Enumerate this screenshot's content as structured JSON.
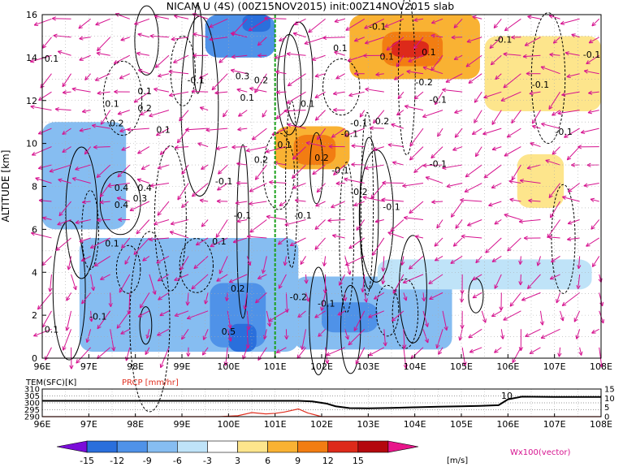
{
  "chart_data": [
    {
      "type": "heatmap",
      "title": "NICAM U (4S) (00Z15NOV2015) init:00Z14NOV2015 slab",
      "ylabel": "ALTITUDE [km]",
      "xlabel": "",
      "x_tick_labels": [
        "96E",
        "97E",
        "98E",
        "99E",
        "100E",
        "101E",
        "102E",
        "103E",
        "104E",
        "105E",
        "106E",
        "107E",
        "108E"
      ],
      "x_ticks": [
        96,
        97,
        98,
        99,
        100,
        101,
        102,
        103,
        104,
        105,
        106,
        107,
        108
      ],
      "y_tick_labels": [
        "0",
        "2",
        "4",
        "6",
        "8",
        "10",
        "12",
        "14",
        "16"
      ],
      "y_ticks": [
        0,
        2,
        4,
        6,
        8,
        10,
        12,
        14,
        16
      ],
      "xlim": [
        96,
        108
      ],
      "ylim": [
        0,
        16
      ],
      "grid": true,
      "marker_line_x": 101,
      "colors": {
        "v_-15": "#7b0dd9",
        "v_-12": "#2a6fdc",
        "v_-9": "#4f92e8",
        "v_-6": "#86bdf1",
        "v_-3": "#bfe3f8",
        "v_0": "#ffffff",
        "v_3": "#fde58c",
        "v_6": "#f9b233",
        "v_9": "#f27d12",
        "v_12": "#dd2a1a",
        "v_15": "#b4080e",
        "vector": "#d6128f",
        "contour": "#000000",
        "marker": "#1aa11a"
      },
      "regions": [
        {
          "x": [
            96.8,
            101.5
          ],
          "y": [
            0.3,
            5.6
          ],
          "value": -6
        },
        {
          "x": [
            99.6,
            100.8
          ],
          "y": [
            0.5,
            3.5
          ],
          "value": -9
        },
        {
          "x": [
            100.0,
            100.6
          ],
          "y": [
            0.3,
            1.6
          ],
          "value": -12
        },
        {
          "x": [
            101.4,
            104.8
          ],
          "y": [
            0.4,
            3.8
          ],
          "value": -6
        },
        {
          "x": [
            102.0,
            103.2
          ],
          "y": [
            1.2,
            2.6
          ],
          "value": -9
        },
        {
          "x": [
            96.0,
            97.8
          ],
          "y": [
            6.0,
            11.0
          ],
          "value": -6
        },
        {
          "x": [
            99.5,
            101.0
          ],
          "y": [
            14.0,
            16.0
          ],
          "value": -9
        },
        {
          "x": [
            100.3,
            100.9
          ],
          "y": [
            15.2,
            16.0
          ],
          "value": -12
        },
        {
          "x": [
            103.2,
            107.8
          ],
          "y": [
            3.2,
            4.6
          ],
          "value": -3
        },
        {
          "x": [
            101.0,
            102.6
          ],
          "y": [
            8.8,
            10.8
          ],
          "value": 6
        },
        {
          "x": [
            101.4,
            102.3
          ],
          "y": [
            9.0,
            10.4
          ],
          "value": 9
        },
        {
          "x": [
            102.6,
            105.4
          ],
          "y": [
            13.0,
            16.0
          ],
          "value": 6
        },
        {
          "x": [
            103.3,
            104.6
          ],
          "y": [
            13.6,
            15.2
          ],
          "value": 9
        },
        {
          "x": [
            103.5,
            104.3
          ],
          "y": [
            14.0,
            14.8
          ],
          "value": 12
        },
        {
          "x": [
            105.5,
            108.0
          ],
          "y": [
            11.5,
            15.0
          ],
          "value": 3
        },
        {
          "x": [
            106.2,
            107.2
          ],
          "y": [
            7.0,
            9.5
          ],
          "value": 3
        }
      ],
      "contour_labels": [
        {
          "x": 96.2,
          "y": 13.8,
          "text": "0.1"
        },
        {
          "x": 97.5,
          "y": 11.7,
          "text": "0.1"
        },
        {
          "x": 97.6,
          "y": 10.8,
          "text": "0.2"
        },
        {
          "x": 98.2,
          "y": 12.3,
          "text": "0.1"
        },
        {
          "x": 98.2,
          "y": 11.5,
          "text": "0.2"
        },
        {
          "x": 98.6,
          "y": 10.5,
          "text": "0.1"
        },
        {
          "x": 99.3,
          "y": 12.8,
          "text": "-0.1"
        },
        {
          "x": 100.3,
          "y": 13.0,
          "text": "0.3"
        },
        {
          "x": 100.7,
          "y": 12.8,
          "text": "0.2"
        },
        {
          "x": 100.4,
          "y": 12.0,
          "text": "0.1"
        },
        {
          "x": 101.7,
          "y": 11.7,
          "text": "0.1"
        },
        {
          "x": 101.2,
          "y": 9.8,
          "text": "0.1"
        },
        {
          "x": 100.7,
          "y": 9.1,
          "text": "0.2"
        },
        {
          "x": 99.9,
          "y": 8.1,
          "text": "-0.1"
        },
        {
          "x": 97.7,
          "y": 7.8,
          "text": "0.4"
        },
        {
          "x": 97.7,
          "y": 7.0,
          "text": "0.4"
        },
        {
          "x": 98.2,
          "y": 7.8,
          "text": "0.4"
        },
        {
          "x": 98.1,
          "y": 7.3,
          "text": "0.3"
        },
        {
          "x": 97.5,
          "y": 5.2,
          "text": "0.1"
        },
        {
          "x": 100.3,
          "y": 6.5,
          "text": "-0.1"
        },
        {
          "x": 99.8,
          "y": 5.3,
          "text": "0.1"
        },
        {
          "x": 101.6,
          "y": 6.5,
          "text": "-0.1"
        },
        {
          "x": 100.2,
          "y": 3.1,
          "text": "0.2"
        },
        {
          "x": 101.5,
          "y": 2.7,
          "text": "-0.2"
        },
        {
          "x": 102.1,
          "y": 2.4,
          "text": "-0.1"
        },
        {
          "x": 96.2,
          "y": 1.2,
          "text": "0.1"
        },
        {
          "x": 97.2,
          "y": 1.8,
          "text": "-0.1"
        },
        {
          "x": 100.0,
          "y": 1.1,
          "text": "0.5"
        },
        {
          "x": 102.8,
          "y": 10.8,
          "text": "-0.1"
        },
        {
          "x": 102.6,
          "y": 10.3,
          "text": "-0.1"
        },
        {
          "x": 103.3,
          "y": 10.9,
          "text": "0.2"
        },
        {
          "x": 102.0,
          "y": 9.2,
          "text": "0.2"
        },
        {
          "x": 102.4,
          "y": 8.6,
          "text": "-0.1"
        },
        {
          "x": 102.8,
          "y": 7.6,
          "text": "-0.2"
        },
        {
          "x": 103.5,
          "y": 6.9,
          "text": "-0.1"
        },
        {
          "x": 104.5,
          "y": 8.9,
          "text": "-0.1"
        },
        {
          "x": 102.4,
          "y": 14.3,
          "text": "0.1"
        },
        {
          "x": 103.2,
          "y": 15.3,
          "text": "-0.1"
        },
        {
          "x": 103.4,
          "y": 13.9,
          "text": "0.1"
        },
        {
          "x": 104.3,
          "y": 14.1,
          "text": "0.1"
        },
        {
          "x": 104.2,
          "y": 12.7,
          "text": "-0.2"
        },
        {
          "x": 104.5,
          "y": 11.9,
          "text": "-0.1"
        },
        {
          "x": 105.9,
          "y": 14.7,
          "text": "-0.1"
        },
        {
          "x": 106.7,
          "y": 12.6,
          "text": "-0.1"
        },
        {
          "x": 107.2,
          "y": 10.4,
          "text": "-0.1"
        },
        {
          "x": 107.8,
          "y": 14.0,
          "text": "-0.1"
        }
      ]
    },
    {
      "type": "line",
      "labels": [
        "TEM(SFC)[K]",
        "PRCP [mm/hr]"
      ],
      "left_ticks": [
        "310",
        "305",
        "300",
        "295",
        "290"
      ],
      "right_ticks": [
        "15",
        "10",
        "5",
        "0"
      ],
      "x_tick_labels": [
        "96E",
        "97E",
        "98E",
        "99E",
        "100E",
        "101E",
        "102E",
        "103E",
        "104E",
        "105E",
        "106E",
        "107E",
        "108E"
      ],
      "xlim": [
        96,
        108
      ],
      "annotation": "10",
      "series": [
        {
          "name": "TEM(SFC)[K]",
          "x": [
            96,
            96.5,
            97,
            97.5,
            98,
            98.5,
            99,
            99.5,
            100,
            100.5,
            101,
            101.5,
            101.8,
            102.1,
            102.3,
            102.6,
            103,
            103.5,
            104,
            104.5,
            105,
            105.4,
            105.8,
            106,
            106.3,
            107,
            107.5,
            108
          ],
          "y": [
            301.5,
            301.5,
            301.5,
            301.5,
            301.5,
            301.5,
            301.5,
            301.5,
            301.5,
            301.5,
            301.5,
            301.5,
            301,
            299.5,
            297.5,
            296.2,
            296,
            296.3,
            296.8,
            297.2,
            297.5,
            297.8,
            298.3,
            302.5,
            304.5,
            304.3,
            304.3,
            304.3
          ]
        },
        {
          "name": "PRCP [mm/hr]",
          "x": [
            96,
            97,
            98,
            99,
            99.8,
            100.2,
            100.5,
            100.8,
            101,
            101.2,
            101.5,
            101.7,
            102,
            102.5,
            103,
            104,
            105,
            106,
            107,
            108
          ],
          "y": [
            0,
            0,
            0,
            0,
            0,
            0.5,
            2.2,
            1.5,
            1.8,
            2.5,
            4.2,
            2,
            0,
            0,
            0,
            0,
            0,
            0,
            0,
            0
          ]
        }
      ]
    }
  ],
  "colorbar": {
    "labels": [
      "-15",
      "-12",
      "-9",
      "-6",
      "-3",
      "3",
      "6",
      "9",
      "12",
      "15"
    ],
    "unit": "[m/s]",
    "colors": [
      "#7b0dd9",
      "#2a6fdc",
      "#4f92e8",
      "#86bdf1",
      "#bfe3f8",
      "#ffffff",
      "#fde58c",
      "#f9b233",
      "#f27d12",
      "#dd2a1a",
      "#b4080e",
      "#e8158a"
    ]
  },
  "vector_label": "Wx100(vector)"
}
